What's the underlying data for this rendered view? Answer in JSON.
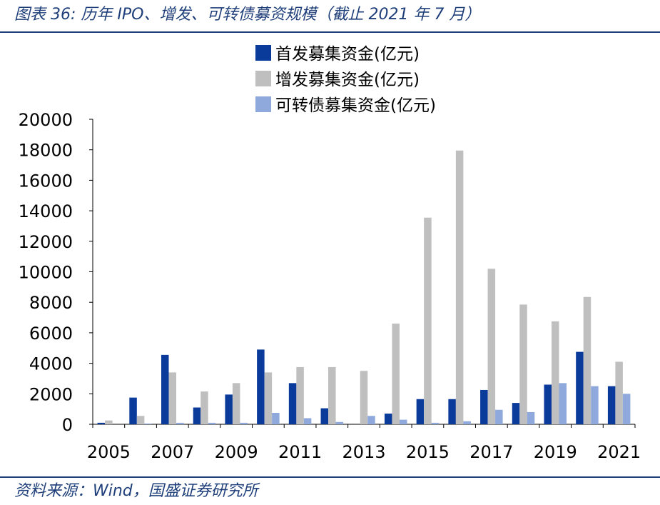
{
  "header": {
    "title": "图表 36:  历年 IPO、增发、可转债募资规模（截止 2021 年 7 月）"
  },
  "footer": {
    "source": "资料来源：Wind，国盛证券研究所"
  },
  "chart_data": {
    "type": "bar",
    "categories": [
      "2005",
      "2006",
      "2007",
      "2008",
      "2009",
      "2010",
      "2011",
      "2012",
      "2013",
      "2014",
      "2015",
      "2016",
      "2017",
      "2018",
      "2019",
      "2020",
      "2021"
    ],
    "x_tick_labels": [
      "2005",
      "2007",
      "2009",
      "2011",
      "2013",
      "2015",
      "2017",
      "2019",
      "2021"
    ],
    "y_ticks": [
      0,
      2000,
      4000,
      6000,
      8000,
      10000,
      12000,
      14000,
      16000,
      18000,
      20000
    ],
    "ylim": [
      0,
      20000
    ],
    "grid": false,
    "legend_position": "top",
    "series": [
      {
        "name": "首发募集资金(亿元)",
        "color": "#0a3a9a",
        "values": [
          100,
          1750,
          4550,
          1100,
          1950,
          4900,
          2700,
          1050,
          0,
          700,
          1650,
          1650,
          2250,
          1400,
          2600,
          4750,
          2500
        ]
      },
      {
        "name": "增发募集资金(亿元)",
        "color": "#bfbfbf",
        "values": [
          250,
          550,
          3400,
          2150,
          2700,
          3400,
          3750,
          3750,
          3500,
          6600,
          13550,
          17950,
          10200,
          7850,
          6750,
          8350,
          4100
        ]
      },
      {
        "name": "可转债募集资金(亿元)",
        "color": "#8fa9dc",
        "values": [
          0,
          50,
          100,
          100,
          100,
          750,
          400,
          150,
          550,
          300,
          100,
          200,
          950,
          800,
          2700,
          2500,
          2000
        ]
      }
    ]
  }
}
